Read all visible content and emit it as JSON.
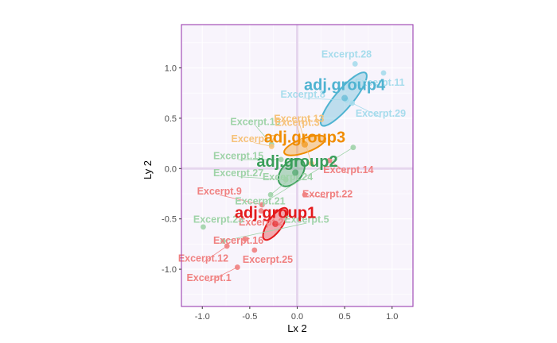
{
  "chart_data": {
    "type": "scatter",
    "xlabel": "Lx 2",
    "ylabel": "Ly 2",
    "xlim": [
      -1.22,
      1.22
    ],
    "ylim": [
      -1.37,
      1.43
    ],
    "x_ticks": [
      -1.0,
      -0.5,
      0.0,
      0.5,
      1.0
    ],
    "x_tick_labels": [
      "-1.0",
      "-0.5",
      "0.0",
      "0.5",
      "1.0"
    ],
    "y_ticks": [
      -1.0,
      -0.5,
      0.0,
      0.5,
      1.0
    ],
    "y_tick_labels": [
      "-1.0",
      "-0.5",
      "0.0",
      "0.5",
      "1.0"
    ],
    "grid": true,
    "background": "#f8f4fc",
    "frame_color": "#9b3fb0",
    "origin_line_color": "#e6d6ee",
    "groups": [
      {
        "name": "adj.group1",
        "color": "#e41a1c",
        "light_color": "#f08080",
        "centroid": [
          -0.23,
          -0.55
        ],
        "ellipse": {
          "cx": -0.23,
          "cy": -0.55,
          "rx": 0.2,
          "ry": 0.07,
          "angle_deg": 55
        },
        "label_xy": [
          -0.23,
          -0.45
        ]
      },
      {
        "name": "adj.group2",
        "color": "#3a9e5a",
        "light_color": "#9fd3a8",
        "centroid": [
          -0.02,
          -0.04
        ],
        "ellipse": {
          "cx": -0.06,
          "cy": -0.04,
          "rx": 0.17,
          "ry": 0.1,
          "angle_deg": 48
        },
        "label_xy": [
          0.0,
          0.06
        ]
      },
      {
        "name": "adj.group3",
        "color": "#f08c00",
        "light_color": "#f6c27a",
        "centroid": [
          0.08,
          0.24
        ],
        "ellipse": {
          "cx": 0.08,
          "cy": 0.23,
          "rx": 0.23,
          "ry": 0.07,
          "angle_deg": 20
        },
        "label_xy": [
          0.08,
          0.3
        ]
      },
      {
        "name": "adj.group4",
        "color": "#4fb3d1",
        "light_color": "#a6dcec",
        "centroid": [
          0.5,
          0.7
        ],
        "ellipse": {
          "cx": 0.49,
          "cy": 0.69,
          "rx": 0.36,
          "ry": 0.09,
          "angle_deg": 50
        },
        "label_xy": [
          0.5,
          0.82
        ]
      }
    ],
    "points": [
      {
        "label": "Excerpt.1",
        "x": -0.63,
        "y": -0.98,
        "group": "adj.group1",
        "label_xy": [
          -0.93,
          -1.09
        ]
      },
      {
        "label": "Excerpt.2",
        "x": -0.38,
        "y": -0.42,
        "group": "adj.group1",
        "label_xy": [
          -0.38,
          -0.54
        ]
      },
      {
        "label": "Excerpt.9",
        "x": -0.37,
        "y": -0.36,
        "group": "adj.group1",
        "label_xy": [
          -0.82,
          -0.23
        ]
      },
      {
        "label": "Excerpt.12",
        "x": -0.74,
        "y": -0.77,
        "group": "adj.group1",
        "label_xy": [
          -0.99,
          -0.9
        ]
      },
      {
        "label": "Excerpt.14",
        "x": 0.34,
        "y": 0.08,
        "group": "adj.group1",
        "label_xy": [
          0.54,
          -0.02
        ]
      },
      {
        "label": "Excerpt.16",
        "x": -0.55,
        "y": -0.7,
        "group": "adj.group1",
        "label_xy": [
          -0.62,
          -0.72
        ]
      },
      {
        "label": "Excerpt.22",
        "x": 0.08,
        "y": -0.26,
        "group": "adj.group1",
        "label_xy": [
          0.32,
          -0.26
        ]
      },
      {
        "label": "Excerpt.25",
        "x": -0.45,
        "y": -0.81,
        "group": "adj.group1",
        "label_xy": [
          -0.31,
          -0.91
        ]
      },
      {
        "label": "Excerpt.5",
        "x": -0.78,
        "y": -0.72,
        "group": "adj.group2",
        "label_xy": [
          0.1,
          -0.51
        ]
      },
      {
        "label": "Excerpt.10",
        "x": -0.27,
        "y": 0.24,
        "group": "adj.group2",
        "label_xy": [
          -0.44,
          0.46
        ]
      },
      {
        "label": "Excerpt.15",
        "x": -0.17,
        "y": 0.09,
        "group": "adj.group2",
        "label_xy": [
          -0.62,
          0.12
        ]
      },
      {
        "label": "Excerpt.24",
        "x": -0.28,
        "y": -0.26,
        "group": "adj.group2",
        "label_xy": [
          -0.1,
          -0.09
        ]
      },
      {
        "label": "Excerpt.27",
        "x": -0.12,
        "y": -0.11,
        "group": "adj.group2",
        "label_xy": [
          -0.62,
          -0.05
        ]
      },
      {
        "label": "Excerpt.21",
        "x": 0.59,
        "y": 0.21,
        "group": "adj.group2",
        "label_xy": [
          -0.39,
          -0.33
        ]
      },
      {
        "label": "Excerpt.23",
        "x": -0.99,
        "y": -0.58,
        "group": "adj.group2",
        "label_xy": [
          -0.83,
          -0.51
        ]
      },
      {
        "label": "Excerpt.3",
        "x": 0.05,
        "y": 0.27,
        "group": "adj.group3",
        "label_xy": [
          0.0,
          0.45
        ]
      },
      {
        "label": "Excerpt.7",
        "x": -0.27,
        "y": 0.22,
        "group": "adj.group3",
        "label_xy": [
          -0.46,
          0.29
        ]
      },
      {
        "label": "Excerpt.13",
        "x": 0.15,
        "y": 0.05,
        "group": "adj.group3",
        "label_xy": [
          0.02,
          0.49
        ]
      },
      {
        "label": "Excerpt.28",
        "x": 0.61,
        "y": 1.04,
        "group": "adj.group4",
        "label_xy": [
          0.52,
          1.13
        ]
      },
      {
        "label": "Excerpt.11",
        "x": 0.91,
        "y": 0.95,
        "group": "adj.group4",
        "label_xy": [
          0.87,
          0.85
        ]
      },
      {
        "label": "Excerpt.29",
        "x": 0.58,
        "y": 0.65,
        "group": "adj.group4",
        "label_xy": [
          0.88,
          0.54
        ]
      },
      {
        "label": "Excerpt.8",
        "x": 0.52,
        "y": 0.68,
        "group": "adj.group4",
        "label_xy": [
          0.06,
          0.73
        ]
      }
    ]
  }
}
